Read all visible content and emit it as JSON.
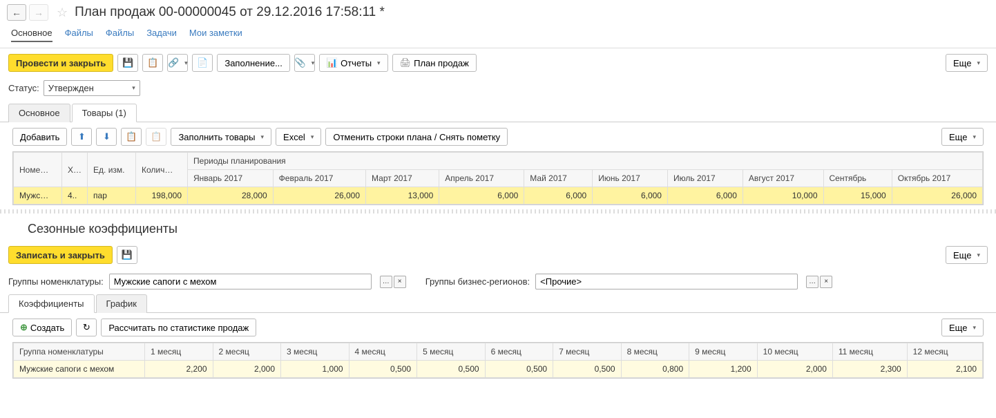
{
  "header": {
    "title": "План продаж 00-00000045 от 29.12.2016 17:58:11 *"
  },
  "nav_tabs": [
    "Основное",
    "Файлы",
    "Файлы",
    "Задачи",
    "Мои заметки"
  ],
  "toolbar": {
    "post_close": "Провести и закрыть",
    "fill": "Заполнение...",
    "reports": "Отчеты",
    "sales_plan": "План продаж",
    "more": "Еще"
  },
  "status": {
    "label": "Статус:",
    "value": "Утвержден"
  },
  "sub_tabs": [
    "Основное",
    "Товары (1)"
  ],
  "goods_toolbar": {
    "add": "Добавить",
    "fill_goods": "Заполнить товары",
    "excel": "Excel",
    "cancel_lines": "Отменить строки плана / Снять пометку",
    "more": "Еще"
  },
  "goods_table": {
    "group_header": "Периоды планирования",
    "fixed_cols": [
      "Номе…",
      "Х…",
      "Ед. изм.",
      "Колич…"
    ],
    "period_cols": [
      "Январь 2017",
      "Февраль 2017",
      "Март 2017",
      "Апрель 2017",
      "Май 2017",
      "Июнь 2017",
      "Июль 2017",
      "Август 2017",
      "Сентябрь",
      "Октябрь 2017"
    ],
    "row": {
      "name": "Мужс…",
      "x": "4..",
      "unit": "пар",
      "qty": "198,000",
      "periods": [
        "28,000",
        "26,000",
        "13,000",
        "6,000",
        "6,000",
        "6,000",
        "6,000",
        "10,000",
        "15,000",
        "26,000"
      ]
    }
  },
  "section2": {
    "title": "Сезонные коэффициенты",
    "save_close": "Записать и закрыть",
    "more": "Еще",
    "field1_label": "Группы номенклатуры:",
    "field1_value": "Мужские сапоги с мехом",
    "field2_label": "Группы бизнес-регионов:",
    "field2_value": "<Прочие>",
    "tabs": [
      "Коэффициенты",
      "График"
    ],
    "create": "Создать",
    "calc": "Рассчитать по статистике продаж",
    "table": {
      "cols": [
        "Группа номенклатуры",
        "1 месяц",
        "2 месяц",
        "3 месяц",
        "4 месяц",
        "5 месяц",
        "6 месяц",
        "7 месяц",
        "8 месяц",
        "9 месяц",
        "10 месяц",
        "11 месяц",
        "12 месяц"
      ],
      "row": {
        "name": "Мужские сапоги с мехом",
        "values": [
          "2,200",
          "2,000",
          "1,000",
          "0,500",
          "0,500",
          "0,500",
          "0,500",
          "0,800",
          "1,200",
          "2,000",
          "2,300",
          "2,100"
        ]
      }
    }
  }
}
